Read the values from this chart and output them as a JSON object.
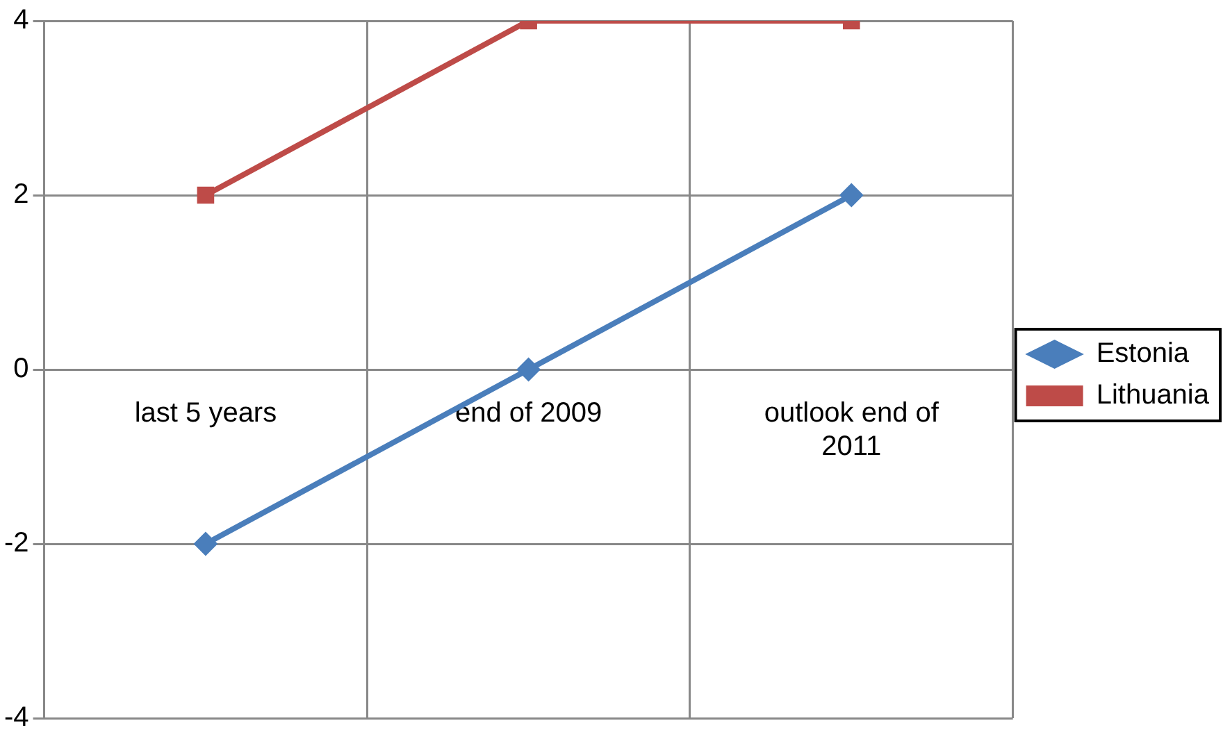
{
  "chart_data": {
    "type": "line",
    "categories": [
      "last 5 years",
      "end of 2009",
      "outlook end of 2011"
    ],
    "series": [
      {
        "name": "Estonia",
        "color": "#4a7ebb",
        "values": [
          -2,
          0,
          2
        ],
        "marker": "diamond"
      },
      {
        "name": "Lithuania",
        "color": "#be4b48",
        "values": [
          2,
          4,
          4
        ],
        "marker": "square"
      }
    ],
    "ylim": [
      -4,
      4
    ],
    "yticks": [
      -4,
      -2,
      0,
      2,
      4
    ],
    "grid": true,
    "legend": "right",
    "line_style": "solid"
  }
}
